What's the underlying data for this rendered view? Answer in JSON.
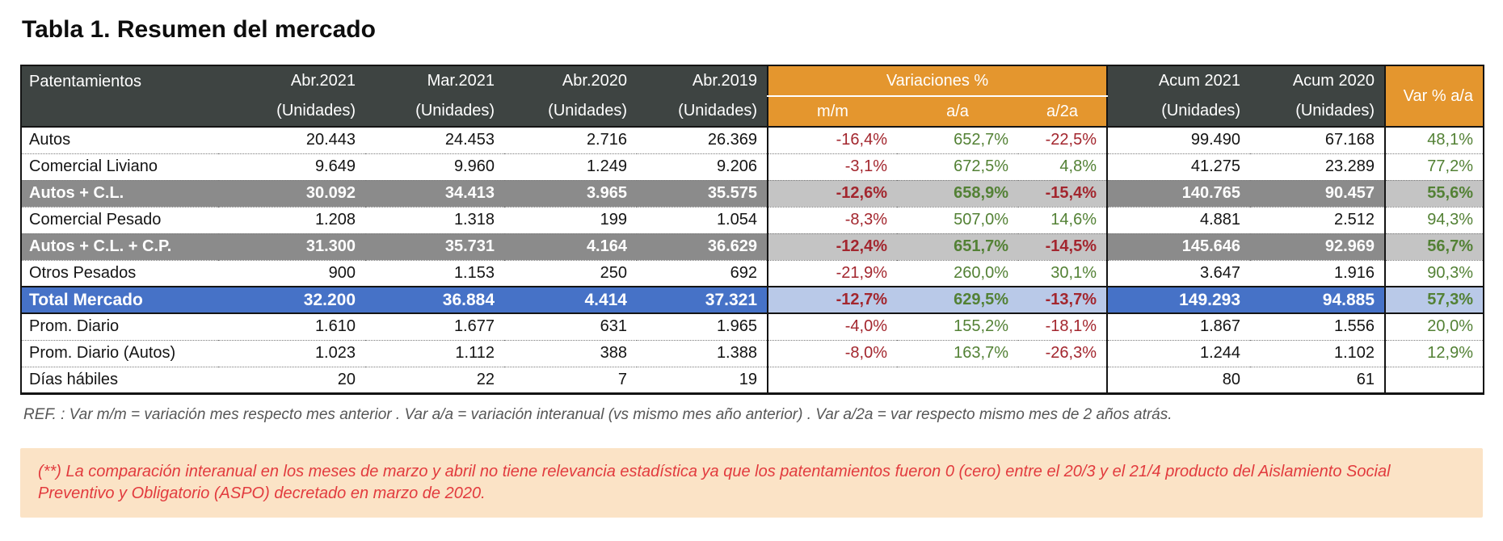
{
  "title": "Tabla 1. Resumen del mercado",
  "table": {
    "header": {
      "col_label": "Patentamientos",
      "unit_label": "(Unidades)",
      "month_cols": [
        "Abr.2021",
        "Mar.2021",
        "Abr.2020",
        "Abr.2019"
      ],
      "variations_group": "Variaciones %",
      "variation_cols": [
        "m/m",
        "a/a",
        "a/2a"
      ],
      "acum_cols": [
        "Acum 2021",
        "Acum 2020"
      ],
      "var_aa": "Var % a/a"
    },
    "rows": [
      {
        "label": "Autos",
        "style": "normal",
        "values": [
          "20.443",
          "24.453",
          "2.716",
          "26.369"
        ],
        "variations": [
          "-16,4%",
          "652,7%",
          "-22,5%"
        ],
        "acum": [
          "99.490",
          "67.168"
        ],
        "var_aa": "48,1%"
      },
      {
        "label": "Comercial Liviano",
        "style": "normal",
        "values": [
          "9.649",
          "9.960",
          "1.249",
          "9.206"
        ],
        "variations": [
          "-3,1%",
          "672,5%",
          "4,8%"
        ],
        "acum": [
          "41.275",
          "23.289"
        ],
        "var_aa": "77,2%"
      },
      {
        "label": "Autos + C.L.",
        "style": "subtotal",
        "values": [
          "30.092",
          "34.413",
          "3.965",
          "35.575"
        ],
        "variations": [
          "-12,6%",
          "658,9%",
          "-15,4%"
        ],
        "acum": [
          "140.765",
          "90.457"
        ],
        "var_aa": "55,6%"
      },
      {
        "label": "Comercial Pesado",
        "style": "normal",
        "values": [
          "1.208",
          "1.318",
          "199",
          "1.054"
        ],
        "variations": [
          "-8,3%",
          "507,0%",
          "14,6%"
        ],
        "acum": [
          "4.881",
          "2.512"
        ],
        "var_aa": "94,3%"
      },
      {
        "label": "Autos + C.L. + C.P.",
        "style": "subtotal",
        "values": [
          "31.300",
          "35.731",
          "4.164",
          "36.629"
        ],
        "variations": [
          "-12,4%",
          "651,7%",
          "-14,5%"
        ],
        "acum": [
          "145.646",
          "92.969"
        ],
        "var_aa": "56,7%"
      },
      {
        "label": "Otros Pesados",
        "style": "normal",
        "values": [
          "900",
          "1.153",
          "250",
          "692"
        ],
        "variations": [
          "-21,9%",
          "260,0%",
          "30,1%"
        ],
        "acum": [
          "3.647",
          "1.916"
        ],
        "var_aa": "90,3%"
      },
      {
        "label": "Total Mercado",
        "style": "total",
        "values": [
          "32.200",
          "36.884",
          "4.414",
          "37.321"
        ],
        "variations": [
          "-12,7%",
          "629,5%",
          "-13,7%"
        ],
        "acum": [
          "149.293",
          "94.885"
        ],
        "var_aa": "57,3%"
      },
      {
        "label": "Prom. Diario",
        "style": "normal",
        "values": [
          "1.610",
          "1.677",
          "631",
          "1.965"
        ],
        "variations": [
          "-4,0%",
          "155,2%",
          "-18,1%"
        ],
        "acum": [
          "1.867",
          "1.556"
        ],
        "var_aa": "20,0%"
      },
      {
        "label": "Prom. Diario (Autos)",
        "style": "normal",
        "values": [
          "1.023",
          "1.112",
          "388",
          "1.388"
        ],
        "variations": [
          "-8,0%",
          "163,7%",
          "-26,3%"
        ],
        "acum": [
          "1.244",
          "1.102"
        ],
        "var_aa": "12,9%"
      },
      {
        "label": "Días hábiles",
        "style": "normal",
        "values": [
          "20",
          "22",
          "7",
          "19"
        ],
        "variations": [
          "",
          "",
          ""
        ],
        "acum": [
          "80",
          "61"
        ],
        "var_aa": ""
      }
    ]
  },
  "ref_note": "REF. :  Var m/m = variación mes respecto mes anterior . Var a/a = variación interanual (vs mismo mes año anterior) . Var a/2a = var respecto mismo mes de 2 años atrás.",
  "warning_note": "(**) La comparación interanual en los meses de marzo y abril no tiene relevancia estadística ya que los patentamientos fueron 0 (cero) entre el 20/3 y el 21/4 producto del Aislamiento Social Preventivo y Obligatorio (ASPO) decretado en marzo de 2020.",
  "colors": {
    "header_dark": "#3E4442",
    "accent_orange": "#E4962E",
    "subtotal_gray": "#8B8B8B",
    "subtotal_light": "#C4C4C4",
    "total_blue": "#4672C7",
    "total_light": "#B9C9E8",
    "positive_green": "#538135",
    "negative_red": "#A3262E",
    "note_bg": "#FBE3C6",
    "note_red": "#E23B3E"
  }
}
